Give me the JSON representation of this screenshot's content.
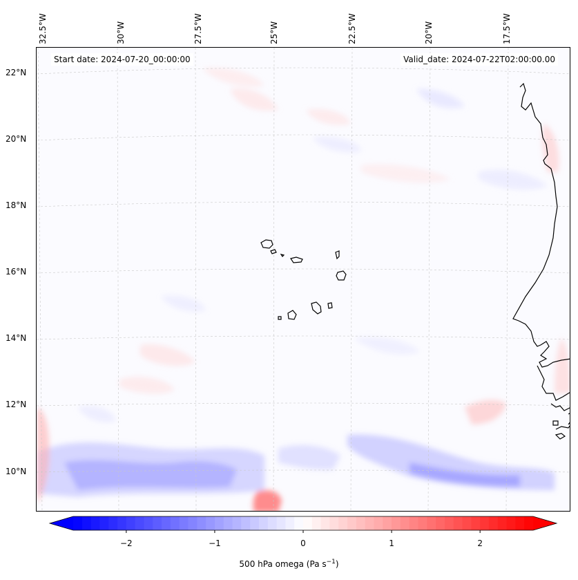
{
  "header": {
    "start_date": "Start date: 2024-07-20_00:00:00",
    "valid_date": "Valid_date: 2024-07-22T02:00:00.00"
  },
  "axes": {
    "lon_labels": [
      "32.5°W",
      "30°W",
      "27.5°W",
      "25°W",
      "22.5°W",
      "20°W",
      "17.5°W"
    ],
    "lat_labels": [
      "22°N",
      "20°N",
      "18°N",
      "16°N",
      "14°N",
      "12°N",
      "10°N"
    ]
  },
  "colorbar": {
    "ticks": [
      "−2",
      "−1",
      "0",
      "1",
      "2"
    ],
    "tick_values": [
      -2,
      -1,
      0,
      1,
      2
    ],
    "range": [
      -2.6,
      2.6
    ],
    "label": "500 hPa omega (Pa s",
    "label_sup": "−1",
    "label_close": ")",
    "color_min": "#0000ff",
    "color_mid": "#ffffff",
    "color_max": "#ff0000"
  },
  "map": {
    "field_background": "#fbfbff",
    "coastline_color": "#000000",
    "gridline_color": "#c8c8c8"
  }
}
